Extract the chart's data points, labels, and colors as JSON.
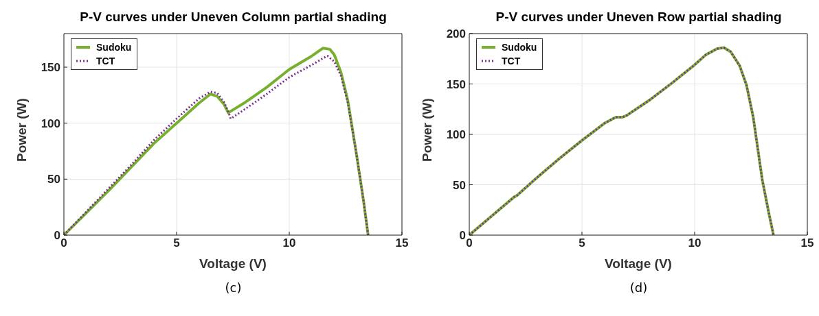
{
  "chart_data": [
    {
      "type": "line",
      "title": "P-V curves under Uneven Column partial shading",
      "xlabel": "Voltage (V)",
      "ylabel": "Power (W)",
      "annotations": [
        "(c)"
      ],
      "xlim": [
        0,
        15
      ],
      "xticks": [
        0,
        5,
        10,
        15
      ],
      "ylim": [
        0,
        180
      ],
      "yticks": [
        0,
        50,
        100,
        150
      ],
      "grid": true,
      "legend": "top left",
      "marker": "none",
      "series": [
        {
          "name": "Sudoku",
          "color": "#77b02f",
          "line_style": "solid",
          "x": [
            0,
            1,
            2,
            3,
            4,
            5,
            6,
            6.5,
            6.8,
            7.1,
            7.3,
            7.35,
            8,
            9,
            10,
            11,
            11.5,
            11.8,
            12,
            12.3,
            12.6,
            13,
            13.3,
            13.5
          ],
          "values": [
            0,
            20,
            40,
            61,
            82,
            100,
            118,
            126,
            124,
            117,
            109,
            110,
            118,
            132,
            148,
            160,
            167,
            166,
            161,
            145,
            120,
            70,
            30,
            0
          ]
        },
        {
          "name": "TCT",
          "color": "#7b2d8e",
          "line_style": "dotted",
          "x": [
            0,
            1,
            2,
            3,
            4,
            5,
            6,
            6.5,
            6.8,
            7.1,
            7.3,
            7.4,
            8,
            9,
            10,
            11,
            11.5,
            11.7,
            12,
            12.3,
            12.6,
            13,
            13.3,
            13.5
          ],
          "values": [
            0,
            21,
            42,
            63,
            85,
            104,
            122,
            128,
            127,
            119,
            110,
            104,
            112,
            126,
            141,
            152,
            158,
            160,
            155,
            142,
            118,
            70,
            30,
            0
          ]
        }
      ]
    },
    {
      "type": "line",
      "title": "P-V curves under Uneven Row partial shading",
      "xlabel": "Voltage (V)",
      "ylabel": "Power (W)",
      "annotations": [
        "(d)"
      ],
      "xlim": [
        0,
        15
      ],
      "xticks": [
        0,
        5,
        10,
        15
      ],
      "ylim": [
        0,
        200
      ],
      "yticks": [
        0,
        50,
        100,
        150,
        200
      ],
      "grid": true,
      "legend": "top left",
      "marker": "none",
      "series": [
        {
          "name": "Sudoku",
          "color": "#77b02f",
          "line_style": "solid",
          "x": [
            0,
            1,
            2,
            2.1,
            3,
            4,
            5,
            6,
            6.5,
            6.8,
            7,
            8,
            9,
            10,
            10.5,
            11,
            11.3,
            11.6,
            12,
            12.3,
            12.6,
            13,
            13.3,
            13.5
          ],
          "values": [
            0,
            19,
            38,
            39,
            57,
            76,
            94,
            111,
            117,
            117,
            119,
            134,
            151,
            169,
            179,
            185,
            186,
            182,
            168,
            149,
            117,
            55,
            21,
            0
          ]
        },
        {
          "name": "TCT",
          "color": "#7b2d8e",
          "line_style": "dotted",
          "x": [
            0,
            1,
            2,
            2.1,
            3,
            4,
            5,
            6,
            6.5,
            6.8,
            7,
            8,
            9,
            10,
            10.5,
            11,
            11.3,
            11.6,
            12,
            12.3,
            12.6,
            13,
            13.3,
            13.5
          ],
          "values": [
            0,
            19,
            38,
            39,
            57,
            76,
            94,
            111,
            117,
            117,
            119,
            134,
            151,
            169,
            179,
            185,
            186,
            182,
            168,
            149,
            117,
            55,
            21,
            0
          ]
        }
      ]
    }
  ]
}
